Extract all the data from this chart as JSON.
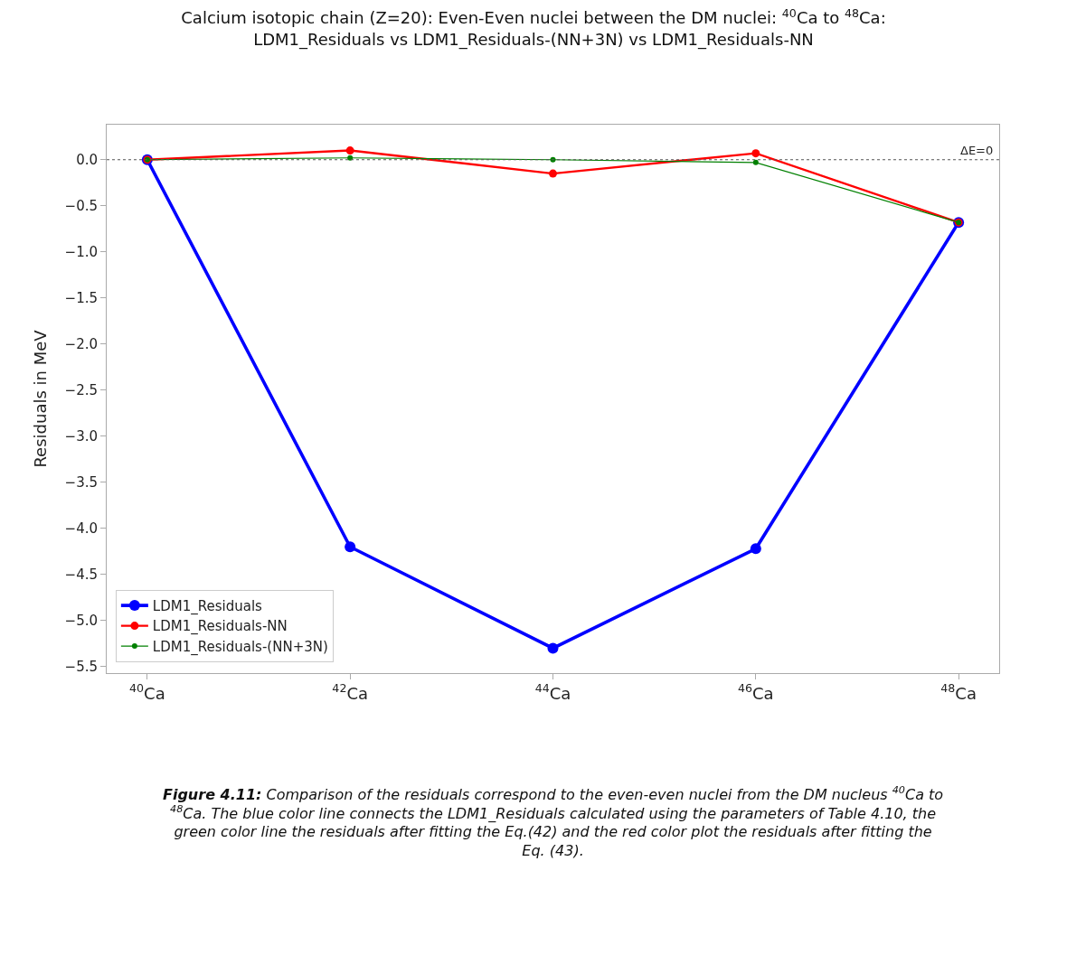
{
  "chart_data": {
    "type": "line",
    "title": "Calcium isotopic chain (Z=20): Even-Even nuclei between the DM nuclei: $^{40}$Ca to $^{48}$Ca:\nLDM1_Residuals vs LDM1_Residuals-(NN+3N) vs LDM1_Residuals-NN",
    "ylabel": "Residuals in MeV",
    "categories": [
      "$^{40}$Ca",
      "$^{42}$Ca",
      "$^{44}$Ca",
      "$^{46}$Ca",
      "$^{48}$Ca"
    ],
    "series": [
      {
        "name": "LDM1_Residuals",
        "color": "#0000ff",
        "values": [
          0,
          -4.2,
          -5.3,
          -4.22,
          -0.68
        ]
      },
      {
        "name": "LDM1_Residuals-NN",
        "color": "#ff0000",
        "values": [
          0,
          0.1,
          -0.15,
          0.07,
          -0.68
        ]
      },
      {
        "name": "LDM1_Residuals-(NN+3N)",
        "color": "#008000",
        "values": [
          0,
          0.02,
          0,
          -0.03,
          -0.68
        ]
      }
    ],
    "ylim": [
      -5.57,
      0.38
    ],
    "yticks": [
      {
        "value": 0,
        "label": "0.0"
      },
      {
        "value": -0.5,
        "label": "−0.5"
      },
      {
        "value": -1,
        "label": "−1.0"
      },
      {
        "value": -1.5,
        "label": "−1.5"
      },
      {
        "value": -2,
        "label": "−2.0"
      },
      {
        "value": -2.5,
        "label": "−2.5"
      },
      {
        "value": -3,
        "label": "−3.0"
      },
      {
        "value": -3.5,
        "label": "−3.5"
      },
      {
        "value": -4,
        "label": "−4.0"
      },
      {
        "value": -4.5,
        "label": "−4.5"
      },
      {
        "value": -5,
        "label": "−5.0"
      },
      {
        "value": -5.5,
        "label": "−5.5"
      }
    ],
    "ref_lines": [
      {
        "axis": "y",
        "value": 0,
        "label": "ΔE=0",
        "color": "#555555",
        "line_style": "dotted"
      }
    ],
    "marker": "circle",
    "line_style": "solid",
    "grid": false,
    "legend": "bottom left",
    "annotations": [
      "Figure 4.11: Comparison of the residuals correspond to the even-even nuclei from the DM nucleus $^{40}$Ca to $^{48}$Ca. The blue color line connects the LDM1_Residuals calculated using the parameters of Table 4.10, the green color line the residuals after fitting the Eq.(42) and the red color plot the residuals after fitting the Eq. (43)."
    ]
  }
}
